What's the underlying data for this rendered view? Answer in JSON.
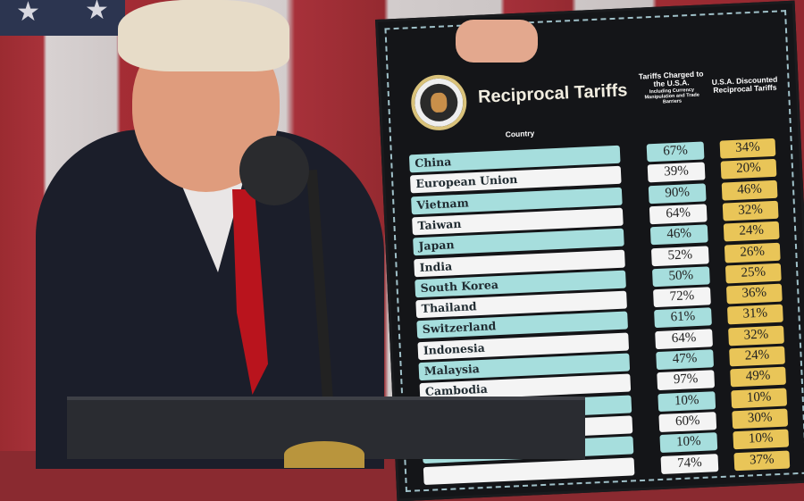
{
  "board": {
    "title": "Reciprocal Tariffs",
    "country_header": "Country",
    "charged_header": "Tariffs Charged to the U.S.A.",
    "charged_subheader": "Including Currency Manipulation and Trade Barriers",
    "discounted_header": "U.S.A. Discounted Reciprocal Tariffs",
    "seal_text": "Seal of the President of the United States",
    "rows": [
      {
        "country": "China",
        "charged": "67%",
        "discounted": "34%"
      },
      {
        "country": "European Union",
        "charged": "39%",
        "discounted": "20%"
      },
      {
        "country": "Vietnam",
        "charged": "90%",
        "discounted": "46%"
      },
      {
        "country": "Taiwan",
        "charged": "64%",
        "discounted": "32%"
      },
      {
        "country": "Japan",
        "charged": "46%",
        "discounted": "24%"
      },
      {
        "country": "India",
        "charged": "52%",
        "discounted": "26%"
      },
      {
        "country": "South Korea",
        "charged": "50%",
        "discounted": "25%"
      },
      {
        "country": "Thailand",
        "charged": "72%",
        "discounted": "36%"
      },
      {
        "country": "Switzerland",
        "charged": "61%",
        "discounted": "31%"
      },
      {
        "country": "Indonesia",
        "charged": "64%",
        "discounted": "32%"
      },
      {
        "country": "Malaysia",
        "charged": "47%",
        "discounted": "24%"
      },
      {
        "country": "Cambodia",
        "charged": "97%",
        "discounted": "49%"
      },
      {
        "country": "",
        "charged": "10%",
        "discounted": "10%"
      },
      {
        "country": "",
        "charged": "60%",
        "discounted": "30%"
      },
      {
        "country": "",
        "charged": "10%",
        "discounted": "10%"
      },
      {
        "country": "",
        "charged": "74%",
        "discounted": "37%"
      }
    ],
    "colors": {
      "country_alt": "#a6dedd",
      "charged_alt": "#a6dedd",
      "discounted": "#e9c558",
      "board": "#141518"
    }
  }
}
